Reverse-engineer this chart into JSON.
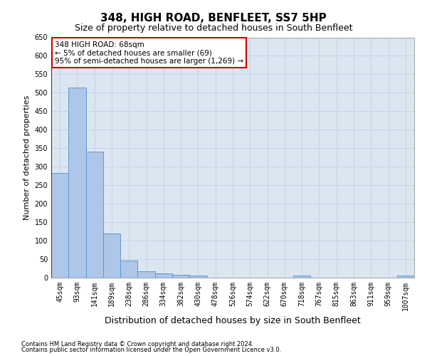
{
  "title": "348, HIGH ROAD, BENFLEET, SS7 5HP",
  "subtitle": "Size of property relative to detached houses in South Benfleet",
  "xlabel": "Distribution of detached houses by size in South Benfleet",
  "ylabel": "Number of detached properties",
  "footnote1": "Contains HM Land Registry data © Crown copyright and database right 2024.",
  "footnote2": "Contains public sector information licensed under the Open Government Licence v3.0.",
  "categories": [
    "45sqm",
    "93sqm",
    "141sqm",
    "189sqm",
    "238sqm",
    "286sqm",
    "334sqm",
    "382sqm",
    "430sqm",
    "478sqm",
    "526sqm",
    "574sqm",
    "622sqm",
    "670sqm",
    "718sqm",
    "767sqm",
    "815sqm",
    "863sqm",
    "911sqm",
    "959sqm",
    "1007sqm"
  ],
  "values": [
    283,
    515,
    340,
    120,
    47,
    17,
    12,
    8,
    5,
    0,
    0,
    0,
    0,
    0,
    5,
    0,
    0,
    0,
    0,
    0,
    5
  ],
  "bar_color": "#aec6e8",
  "bar_edge_color": "#5b9bd5",
  "annotation_box_text": "348 HIGH ROAD: 68sqm\n← 5% of detached houses are smaller (69)\n95% of semi-detached houses are larger (1,269) →",
  "annotation_box_color": "#ffffff",
  "annotation_box_edge_color": "#cc0000",
  "ylim": [
    0,
    650
  ],
  "yticks": [
    0,
    50,
    100,
    150,
    200,
    250,
    300,
    350,
    400,
    450,
    500,
    550,
    600,
    650
  ],
  "grid_color": "#c8d4e8",
  "background_color": "#dce6f1",
  "title_fontsize": 11,
  "subtitle_fontsize": 9,
  "ylabel_fontsize": 8,
  "xlabel_fontsize": 9,
  "tick_fontsize": 7,
  "footnote_fontsize": 6,
  "annot_fontsize": 7.5
}
